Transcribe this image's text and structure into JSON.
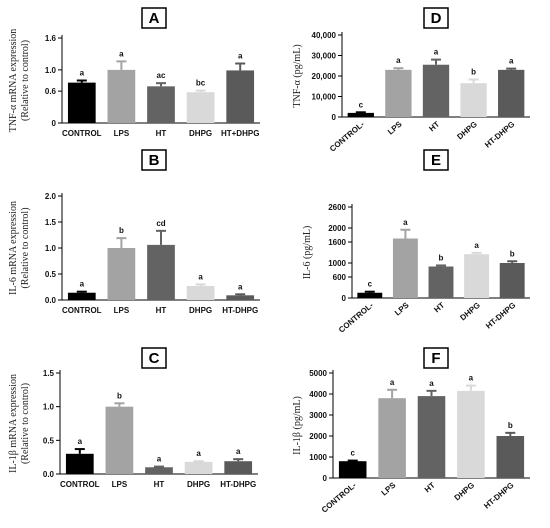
{
  "chart_data": [
    {
      "type": "bar",
      "panel_label": "A",
      "ylabel": [
        "TNF-α mRNA expression",
        "(Relative to control)"
      ],
      "categories": [
        "CONTROL",
        "LPS",
        "HT",
        "DHPG",
        "HT+DHPG"
      ],
      "values": [
        0.76,
        1.0,
        0.69,
        0.58,
        0.99
      ],
      "errors": [
        0.04,
        0.16,
        0.06,
        0.03,
        0.13
      ],
      "sig_letters": [
        "a",
        "a",
        "ac",
        "bc",
        "a"
      ],
      "colors": [
        "#000000",
        "#a3a3a3",
        "#636363",
        "#d9d9d9",
        "#5a5a5a"
      ],
      "ylim": [
        0,
        1.6
      ],
      "yticks": [
        0,
        0.6,
        1.0,
        1.6
      ],
      "ytick_labels": [
        "0",
        "0.6",
        "1.0",
        "1.6"
      ],
      "rotated_categories": false
    },
    {
      "type": "bar",
      "panel_label": "D",
      "ylabel": [
        "TNF-α (pg/mL)"
      ],
      "categories": [
        "CONTROL-",
        "LPS",
        "HT",
        "DHPG",
        "HT-DHPG"
      ],
      "values": [
        2000,
        23000,
        25500,
        16500,
        23000
      ],
      "errors": [
        300,
        800,
        2500,
        1800,
        600
      ],
      "sig_letters": [
        "c",
        "a",
        "a",
        "b",
        "a"
      ],
      "colors": [
        "#000000",
        "#a3a3a3",
        "#636363",
        "#d9d9d9",
        "#5a5a5a"
      ],
      "ylim": [
        0,
        40000
      ],
      "yticks": [
        0,
        10000,
        20000,
        30000,
        40000
      ],
      "ytick_labels": [
        "0",
        "10,000",
        "20,000",
        "30,000",
        "40,000"
      ],
      "rotated_categories": true
    },
    {
      "type": "bar",
      "panel_label": "B",
      "ylabel": [
        "IL-6 mRNA expression",
        "(Relative to control)"
      ],
      "categories": [
        "CONTROL",
        "LPS",
        "HT",
        "DHPG",
        "HT-DHPG"
      ],
      "values": [
        0.14,
        1.0,
        1.06,
        0.27,
        0.09
      ],
      "errors": [
        0.02,
        0.19,
        0.27,
        0.03,
        0.02
      ],
      "sig_letters": [
        "a",
        "b",
        "cd",
        "a",
        "a"
      ],
      "colors": [
        "#000000",
        "#a3a3a3",
        "#636363",
        "#d9d9d9",
        "#5a5a5a"
      ],
      "ylim": [
        0,
        2.0
      ],
      "yticks": [
        0,
        0.5,
        1.0,
        1.5,
        2.0
      ],
      "ytick_labels": [
        "0.0",
        "0.5",
        "1.0",
        "1.5",
        "2.0"
      ],
      "rotated_categories": false
    },
    {
      "type": "bar",
      "panel_label": "E",
      "ylabel": [
        "IL-6 (pg/mL)"
      ],
      "categories": [
        "CONTROL-",
        "LPS",
        "HT",
        "DHPG",
        "HT-DHPG"
      ],
      "values": [
        150,
        1700,
        900,
        1250,
        1000
      ],
      "errors": [
        30,
        250,
        30,
        40,
        50
      ],
      "sig_letters": [
        "c",
        "a",
        "b",
        "a",
        "b"
      ],
      "colors": [
        "#000000",
        "#a3a3a3",
        "#636363",
        "#d9d9d9",
        "#5a5a5a"
      ],
      "ylim": [
        0,
        2600
      ],
      "yticks": [
        0,
        600,
        1000,
        1600,
        2000,
        2600
      ],
      "ytick_labels": [
        "0",
        "600",
        "1000",
        "1600",
        "2000",
        "2600"
      ],
      "rotated_categories": true
    },
    {
      "type": "bar",
      "panel_label": "C",
      "ylabel": [
        "IL-1β mRNA expression",
        "(Relative to control)"
      ],
      "categories": [
        "CONTROL",
        "LPS",
        "HT",
        "DHPG",
        "HT-DHPG"
      ],
      "values": [
        0.3,
        1.0,
        0.1,
        0.18,
        0.19
      ],
      "errors": [
        0.07,
        0.05,
        0.01,
        0.01,
        0.03
      ],
      "sig_letters": [
        "a",
        "b",
        "a",
        "a",
        "a"
      ],
      "colors": [
        "#000000",
        "#a3a3a3",
        "#636363",
        "#d9d9d9",
        "#5a5a5a"
      ],
      "ylim": [
        0,
        1.5
      ],
      "yticks": [
        0,
        0.5,
        1.0,
        1.5
      ],
      "ytick_labels": [
        "0.0",
        "0.5",
        "1.0",
        "1.5"
      ],
      "rotated_categories": false
    },
    {
      "type": "bar",
      "panel_label": "F",
      "ylabel": [
        "IL-1β (pg/mL)"
      ],
      "categories": [
        "CONTROL-",
        "LPS",
        "HT",
        "DHPG",
        "HT-DHPG"
      ],
      "values": [
        800,
        3800,
        3900,
        4150,
        2000
      ],
      "errors": [
        30,
        400,
        250,
        250,
        150
      ],
      "sig_letters": [
        "c",
        "a",
        "a",
        "a",
        "b"
      ],
      "colors": [
        "#000000",
        "#a3a3a3",
        "#636363",
        "#d9d9d9",
        "#5a5a5a"
      ],
      "ylim": [
        0,
        5000
      ],
      "yticks": [
        0,
        1000,
        2000,
        3000,
        4000,
        5000
      ],
      "ytick_labels": [
        "0",
        "1000",
        "2000",
        "3000",
        "4000",
        "5000"
      ],
      "rotated_categories": true
    }
  ]
}
